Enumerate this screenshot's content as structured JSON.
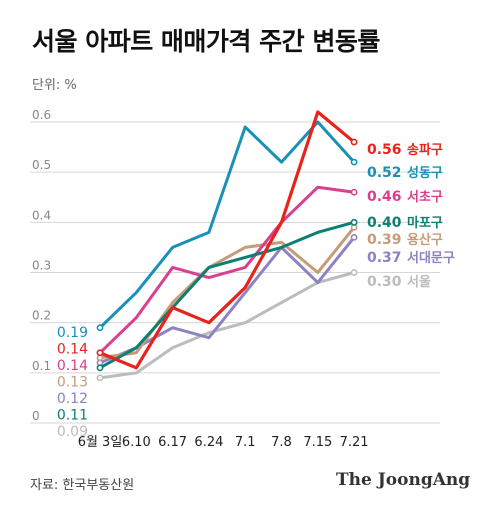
{
  "chart_data": {
    "type": "line",
    "title": "서울 아파트 매매가격 주간 변동률",
    "unit_label": "단위: %",
    "x": [
      "6월 3일",
      "6.10",
      "6.17",
      "6.24",
      "7.1",
      "7.8",
      "7.15",
      "7.21"
    ],
    "ylim": [
      0,
      0.6
    ],
    "yticks": [
      0,
      0.1,
      0.2,
      0.3,
      0.4,
      0.5,
      0.6
    ],
    "grid": true,
    "series": [
      {
        "name": "서울",
        "color": "#bcbcbc",
        "width": 3,
        "values": [
          0.09,
          0.1,
          0.15,
          0.18,
          0.2,
          0.24,
          0.28,
          0.3
        ],
        "label": "0.30",
        "start_label": "0.09"
      },
      {
        "name": "서대문구",
        "color": "#8e82c2",
        "width": 3,
        "values": [
          0.12,
          0.15,
          0.19,
          0.17,
          0.26,
          0.35,
          0.28,
          0.37
        ],
        "label": "0.37",
        "start_label": "0.12"
      },
      {
        "name": "용산구",
        "color": "#c69c78",
        "width": 3,
        "values": [
          0.13,
          0.14,
          0.24,
          0.31,
          0.35,
          0.36,
          0.3,
          0.39
        ],
        "label": "0.39",
        "start_label": "0.13"
      },
      {
        "name": "서초구",
        "color": "#d8408f",
        "width": 3,
        "values": [
          0.14,
          0.21,
          0.31,
          0.29,
          0.31,
          0.4,
          0.47,
          0.46
        ],
        "label": "0.46",
        "start_label": "0.14"
      },
      {
        "name": "마포구",
        "color": "#0b7f72",
        "width": 3,
        "values": [
          0.11,
          0.15,
          0.23,
          0.31,
          0.33,
          0.35,
          0.38,
          0.4
        ],
        "label": "0.40",
        "start_label": "0.11"
      },
      {
        "name": "성동구",
        "color": "#1a90b6",
        "width": 3,
        "values": [
          0.19,
          0.26,
          0.35,
          0.38,
          0.59,
          0.52,
          0.6,
          0.52
        ],
        "label": "0.52",
        "start_label": "0.19"
      },
      {
        "name": "송파구",
        "color": "#e8231b",
        "width": 3.2,
        "values": [
          0.14,
          0.11,
          0.23,
          0.2,
          0.27,
          0.4,
          0.62,
          0.56
        ],
        "label": "0.56",
        "start_label": "0.14"
      }
    ]
  },
  "source": "자료: 한국부동산원",
  "brand": "The JoongAng"
}
